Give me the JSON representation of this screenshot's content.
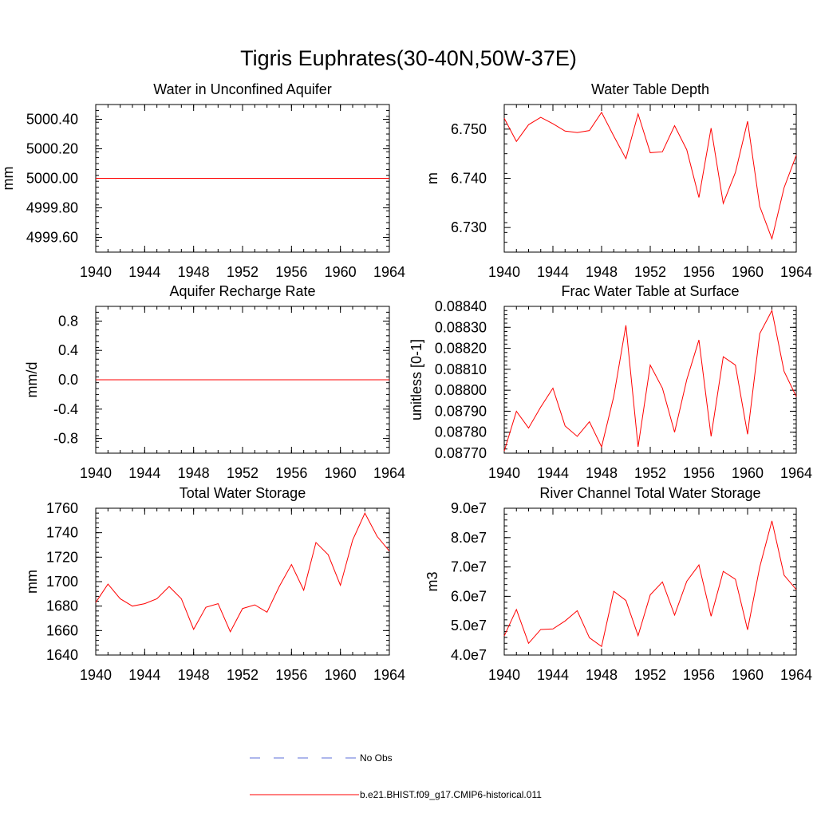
{
  "title": "Tigris Euphrates(30-40N,50W-37E)",
  "series_color": "#ff0000",
  "obs_color": "#5b6fd8",
  "legend": [
    {
      "label": "No Obs",
      "style": "dashed",
      "color": "#5b6fd8"
    },
    {
      "label": "b.e21.BHIST.f09_g17.CMIP6-historical.011",
      "style": "solid",
      "color": "#ff0000"
    }
  ],
  "chart_data": [
    {
      "type": "line",
      "title": "Water in Unconfined Aquifer",
      "ylabel": "mm",
      "xlim": [
        1940,
        1964
      ],
      "ylim": [
        4999.5,
        5000.5
      ],
      "xticks": [
        1940,
        1944,
        1948,
        1952,
        1956,
        1960,
        1964
      ],
      "yticks": [
        4999.6,
        4999.8,
        5000.0,
        5000.2,
        5000.4
      ],
      "ytick_labels": [
        "4999.60",
        "4999.80",
        "5000.00",
        "5000.20",
        "5000.40"
      ],
      "series": [
        {
          "x": [
            1940,
            1941,
            1942,
            1943,
            1944,
            1945,
            1946,
            1947,
            1948,
            1949,
            1950,
            1951,
            1952,
            1953,
            1954,
            1955,
            1956,
            1957,
            1958,
            1959,
            1960,
            1961,
            1962,
            1963,
            1964
          ],
          "values": [
            5000,
            5000,
            5000,
            5000,
            5000,
            5000,
            5000,
            5000,
            5000,
            5000,
            5000,
            5000,
            5000,
            5000,
            5000,
            5000,
            5000,
            5000,
            5000,
            5000,
            5000,
            5000,
            5000,
            5000,
            5000
          ]
        }
      ]
    },
    {
      "type": "line",
      "title": "Water Table Depth",
      "ylabel": "m",
      "xlim": [
        1940,
        1964
      ],
      "ylim": [
        6.725,
        6.755
      ],
      "xticks": [
        1940,
        1944,
        1948,
        1952,
        1956,
        1960,
        1964
      ],
      "yticks": [
        6.73,
        6.74,
        6.75
      ],
      "ytick_labels": [
        "6.730",
        "6.740",
        "6.750"
      ],
      "series": [
        {
          "x": [
            1940,
            1941,
            1942,
            1943,
            1944,
            1945,
            1946,
            1947,
            1948,
            1949,
            1950,
            1951,
            1952,
            1953,
            1954,
            1955,
            1956,
            1957,
            1958,
            1959,
            1960,
            1961,
            1962,
            1963,
            1964
          ],
          "values": [
            6.7522,
            6.7475,
            6.7509,
            6.7524,
            6.7511,
            6.7496,
            6.7493,
            6.7497,
            6.7534,
            6.7486,
            6.744,
            6.7531,
            6.7452,
            6.7454,
            6.7507,
            6.7458,
            6.7361,
            6.7502,
            6.7349,
            6.7412,
            6.7516,
            6.7343,
            6.7277,
            6.7381,
            6.7447
          ]
        }
      ]
    },
    {
      "type": "line",
      "title": "Aquifer Recharge Rate",
      "ylabel": "mm/d",
      "xlim": [
        1940,
        1964
      ],
      "ylim": [
        -1.0,
        1.0
      ],
      "xticks": [
        1940,
        1944,
        1948,
        1952,
        1956,
        1960,
        1964
      ],
      "yticks": [
        -0.8,
        -0.4,
        0.0,
        0.4,
        0.8
      ],
      "ytick_labels": [
        "-0.8",
        "-0.4",
        "0.0",
        "0.4",
        "0.8"
      ],
      "series": [
        {
          "x": [
            1940,
            1941,
            1942,
            1943,
            1944,
            1945,
            1946,
            1947,
            1948,
            1949,
            1950,
            1951,
            1952,
            1953,
            1954,
            1955,
            1956,
            1957,
            1958,
            1959,
            1960,
            1961,
            1962,
            1963,
            1964
          ],
          "values": [
            0,
            0,
            0,
            0,
            0,
            0,
            0,
            0,
            0,
            0,
            0,
            0,
            0,
            0,
            0,
            0,
            0,
            0,
            0,
            0,
            0,
            0,
            0,
            0,
            0
          ]
        }
      ]
    },
    {
      "type": "line",
      "title": "Frac Water Table at Surface",
      "ylabel": "unitless [0-1]",
      "xlim": [
        1940,
        1964
      ],
      "ylim": [
        0.0877,
        0.0884
      ],
      "xticks": [
        1940,
        1944,
        1948,
        1952,
        1956,
        1960,
        1964
      ],
      "yticks": [
        0.0877,
        0.0878,
        0.0879,
        0.088,
        0.0881,
        0.0882,
        0.0883,
        0.0884
      ],
      "ytick_labels": [
        "0.08770",
        "0.08780",
        "0.08790",
        "0.08800",
        "0.08810",
        "0.08820",
        "0.08830",
        "0.08840"
      ],
      "series": [
        {
          "x": [
            1940,
            1941,
            1942,
            1943,
            1944,
            1945,
            1946,
            1947,
            1948,
            1949,
            1950,
            1951,
            1952,
            1953,
            1954,
            1955,
            1956,
            1957,
            1958,
            1959,
            1960,
            1961,
            1962,
            1963,
            1964
          ],
          "values": [
            0.08771,
            0.0879,
            0.08782,
            0.08792,
            0.08801,
            0.08783,
            0.08778,
            0.08785,
            0.08773,
            0.08797,
            0.08831,
            0.08773,
            0.08812,
            0.08801,
            0.0878,
            0.08805,
            0.08824,
            0.08778,
            0.08816,
            0.08812,
            0.08779,
            0.08827,
            0.08838,
            0.08809,
            0.08797
          ]
        }
      ]
    },
    {
      "type": "line",
      "title": "Total Water Storage",
      "ylabel": "mm",
      "xlim": [
        1940,
        1964
      ],
      "ylim": [
        1640,
        1760
      ],
      "xticks": [
        1940,
        1944,
        1948,
        1952,
        1956,
        1960,
        1964
      ],
      "yticks": [
        1640,
        1660,
        1680,
        1700,
        1720,
        1740,
        1760
      ],
      "ytick_labels": [
        "1640",
        "1660",
        "1680",
        "1700",
        "1720",
        "1740",
        "1760"
      ],
      "series": [
        {
          "x": [
            1940,
            1941,
            1942,
            1943,
            1944,
            1945,
            1946,
            1947,
            1948,
            1949,
            1950,
            1951,
            1952,
            1953,
            1954,
            1955,
            1956,
            1957,
            1958,
            1959,
            1960,
            1961,
            1962,
            1963,
            1964
          ],
          "values": [
            1683,
            1698,
            1686,
            1680,
            1682,
            1686,
            1696,
            1686,
            1661,
            1679,
            1682,
            1659,
            1678,
            1681,
            1675,
            1696,
            1714,
            1693,
            1732,
            1722,
            1697,
            1734,
            1756,
            1737,
            1725
          ]
        }
      ]
    },
    {
      "type": "line",
      "title": "River Channel Total Water Storage",
      "ylabel": "m3",
      "xlim": [
        1940,
        1964
      ],
      "ylim": [
        40000000,
        90000000
      ],
      "xticks": [
        1940,
        1944,
        1948,
        1952,
        1956,
        1960,
        1964
      ],
      "yticks": [
        40000000,
        50000000,
        60000000,
        70000000,
        80000000,
        90000000
      ],
      "ytick_labels": [
        "4.0e7",
        "5.0e7",
        "6.0e7",
        "7.0e7",
        "8.0e7",
        "9.0e7"
      ],
      "series": [
        {
          "x": [
            1940,
            1941,
            1942,
            1943,
            1944,
            1945,
            1946,
            1947,
            1948,
            1949,
            1950,
            1951,
            1952,
            1953,
            1954,
            1955,
            1956,
            1957,
            1958,
            1959,
            1960,
            1961,
            1962,
            1963,
            1964
          ],
          "values": [
            46500000,
            55500000,
            44000000,
            48700000,
            48900000,
            51600000,
            55100000,
            45900000,
            42900000,
            61700000,
            58600000,
            46600000,
            60500000,
            64900000,
            53600000,
            65100000,
            70700000,
            53200000,
            68500000,
            65800000,
            48600000,
            70000000,
            85700000,
            67200000,
            62300000
          ]
        }
      ]
    }
  ]
}
